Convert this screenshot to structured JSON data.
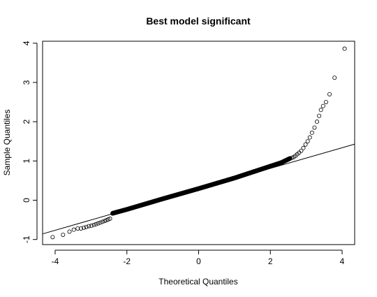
{
  "chart_data": {
    "type": "scatter",
    "title": "Best model significant",
    "xlabel": "Theoretical Quantiles",
    "ylabel": "Sample Quantiles",
    "xlim": [
      -4.35,
      4.35
    ],
    "ylim": [
      -1.13,
      4.05
    ],
    "x_ticks": [
      -4,
      -2,
      0,
      2,
      4
    ],
    "y_ticks": [
      -1,
      0,
      1,
      2,
      3,
      4
    ],
    "x_tick_labels": [
      "-4",
      "-2",
      "0",
      "2",
      "4"
    ],
    "y_tick_labels": [
      "-1",
      "0",
      "1",
      "2",
      "3",
      "4"
    ],
    "grid": false,
    "marker": "open-circle",
    "reference_line": {
      "slope": 0.2628,
      "intercept": 0.2857
    },
    "body_curve": {
      "x_range": [
        -2.4,
        2.55
      ],
      "y_points": [
        [
          -2.4,
          -0.34
        ],
        [
          -2.0,
          -0.24
        ],
        [
          -1.0,
          0.03
        ],
        [
          0.0,
          0.29
        ],
        [
          1.0,
          0.56
        ],
        [
          2.0,
          0.86
        ],
        [
          2.3,
          0.95
        ],
        [
          2.55,
          1.06
        ]
      ]
    },
    "tail_points": [
      {
        "x": -4.07,
        "y": -0.94
      },
      {
        "x": -3.78,
        "y": -0.88
      },
      {
        "x": -3.6,
        "y": -0.8
      },
      {
        "x": -3.48,
        "y": -0.75
      },
      {
        "x": -3.37,
        "y": -0.72
      },
      {
        "x": -3.28,
        "y": -0.72
      },
      {
        "x": -3.2,
        "y": -0.7
      },
      {
        "x": -3.13,
        "y": -0.68
      },
      {
        "x": -3.06,
        "y": -0.66
      },
      {
        "x": -2.99,
        "y": -0.65
      },
      {
        "x": -2.92,
        "y": -0.63
      },
      {
        "x": -2.86,
        "y": -0.61
      },
      {
        "x": -2.8,
        "y": -0.59
      },
      {
        "x": -2.74,
        "y": -0.57
      },
      {
        "x": -2.68,
        "y": -0.55
      },
      {
        "x": -2.62,
        "y": -0.53
      },
      {
        "x": -2.57,
        "y": -0.51
      },
      {
        "x": -2.52,
        "y": -0.49
      },
      {
        "x": -2.47,
        "y": -0.47
      },
      {
        "x": 2.6,
        "y": 1.08
      },
      {
        "x": 2.65,
        "y": 1.1
      },
      {
        "x": 2.7,
        "y": 1.13
      },
      {
        "x": 2.75,
        "y": 1.17
      },
      {
        "x": 2.8,
        "y": 1.21
      },
      {
        "x": 2.86,
        "y": 1.26
      },
      {
        "x": 2.92,
        "y": 1.33
      },
      {
        "x": 2.98,
        "y": 1.42
      },
      {
        "x": 3.04,
        "y": 1.5
      },
      {
        "x": 3.1,
        "y": 1.6
      },
      {
        "x": 3.16,
        "y": 1.72
      },
      {
        "x": 3.23,
        "y": 1.85
      },
      {
        "x": 3.3,
        "y": 2.0
      },
      {
        "x": 3.36,
        "y": 2.15
      },
      {
        "x": 3.41,
        "y": 2.3
      },
      {
        "x": 3.47,
        "y": 2.4
      },
      {
        "x": 3.55,
        "y": 2.5
      },
      {
        "x": 3.65,
        "y": 2.7
      },
      {
        "x": 3.79,
        "y": 3.12
      },
      {
        "x": 4.07,
        "y": 3.86
      }
    ]
  }
}
